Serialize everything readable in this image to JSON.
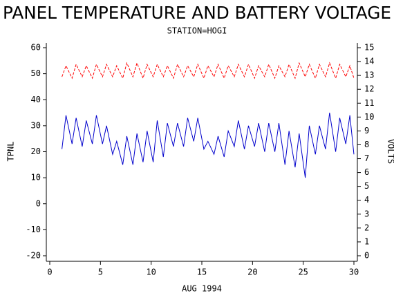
{
  "chart_data": {
    "type": "line",
    "title": "PANEL TEMPERATURE AND BATTERY VOLTAGE",
    "subtitle": "STATION=HOGI",
    "ylabel": "TPNL",
    "y2label": "VOLTS",
    "xlabel": "AUG 1994",
    "x": [
      1.2,
      1.6,
      2.2,
      2.6,
      3.2,
      3.6,
      4.2,
      4.6,
      5.2,
      5.6,
      6.2,
      6.6,
      7.2,
      7.6,
      8.2,
      8.6,
      9.2,
      9.6,
      10.2,
      10.6,
      11.2,
      11.6,
      12.2,
      12.6,
      13.2,
      13.6,
      14.2,
      14.6,
      15.2,
      15.6,
      16.2,
      16.6,
      17.2,
      17.6,
      18.2,
      18.6,
      19.2,
      19.6,
      20.2,
      20.6,
      21.2,
      21.6,
      22.2,
      22.6,
      23.2,
      23.6,
      24.2,
      24.6,
      25.2,
      25.6,
      26.2,
      26.6,
      27.2,
      27.6,
      28.2,
      28.6,
      29.2,
      29.6,
      30
    ],
    "series": [
      {
        "color": "#0000cc",
        "dash": false,
        "values": [
          21,
          34,
          23,
          33,
          22,
          32,
          23,
          34,
          23,
          30,
          19,
          24,
          15,
          26,
          15,
          27,
          16,
          28,
          16,
          32,
          18,
          31,
          22,
          31,
          22,
          33,
          24,
          33,
          21,
          24,
          19,
          26,
          18,
          28,
          22,
          32,
          21,
          30,
          22,
          31,
          20,
          31,
          20,
          31,
          15,
          28,
          14,
          27,
          10,
          30,
          19,
          30,
          21,
          35,
          20,
          33,
          23,
          34,
          19
        ]
      },
      {
        "color": "#ff0000",
        "dash": true,
        "axis": "y2",
        "values": [
          12.9,
          13.7,
          12.8,
          13.8,
          12.9,
          13.7,
          12.8,
          13.8,
          12.9,
          13.8,
          12.9,
          13.7,
          12.8,
          13.9,
          12.9,
          13.9,
          12.8,
          13.8,
          12.9,
          13.8,
          12.9,
          13.7,
          12.8,
          13.8,
          12.9,
          13.7,
          12.9,
          13.8,
          12.8,
          13.7,
          12.9,
          13.8,
          12.8,
          13.7,
          12.9,
          13.8,
          12.9,
          13.8,
          12.8,
          13.7,
          12.9,
          13.8,
          12.8,
          13.7,
          12.9,
          13.8,
          12.8,
          13.9,
          12.9,
          13.8,
          12.8,
          13.8,
          12.9,
          13.9,
          12.8,
          13.8,
          12.9,
          13.7,
          12.8
        ]
      }
    ],
    "xlim": [
      0,
      30
    ],
    "xticks": [
      0,
      5,
      10,
      15,
      20,
      25,
      30
    ],
    "ylim": [
      -20,
      60
    ],
    "yticks": [
      -20,
      -10,
      0,
      10,
      20,
      30,
      40,
      50,
      60
    ],
    "y2lim": [
      0,
      15
    ],
    "y2ticks": [
      0,
      1,
      2,
      3,
      4,
      5,
      6,
      7,
      8,
      9,
      10,
      11,
      12,
      13,
      14,
      15
    ]
  }
}
